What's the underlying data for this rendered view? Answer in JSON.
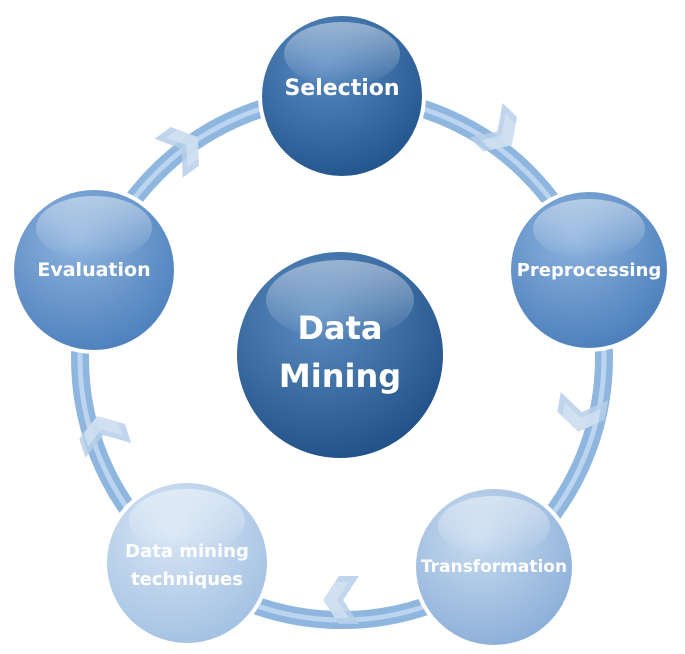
{
  "center": {
    "lines": [
      "Data",
      "Mining"
    ]
  },
  "steps": [
    {
      "id": "selection",
      "lines": [
        "Selection"
      ]
    },
    {
      "id": "preprocessing",
      "lines": [
        "Preprocessing"
      ]
    },
    {
      "id": "transformation",
      "lines": [
        "Transformation"
      ]
    },
    {
      "id": "data-mining-techniques",
      "lines": [
        "Data mining",
        "techniques"
      ]
    },
    {
      "id": "evaluation",
      "lines": [
        "Evaluation"
      ]
    }
  ],
  "colors": {
    "ring": "#8fb6de",
    "ring_highlight": "#c6dcf2",
    "arrow": "#b6cfe9",
    "center_light": "#4f80b6",
    "center_dark": "#1e4f86",
    "selection_light": "#5585bd",
    "selection_dark": "#24568e",
    "preprocessing_light": "#86aedb",
    "preprocessing_dark": "#4b7fbc",
    "transformation_light": "#c2d7ee",
    "transformation_dark": "#8eb1da",
    "techniques_light": "#d2e2f3",
    "techniques_dark": "#a6c3e4",
    "evaluation_light": "#86aedb",
    "evaluation_dark": "#4f81bd"
  }
}
